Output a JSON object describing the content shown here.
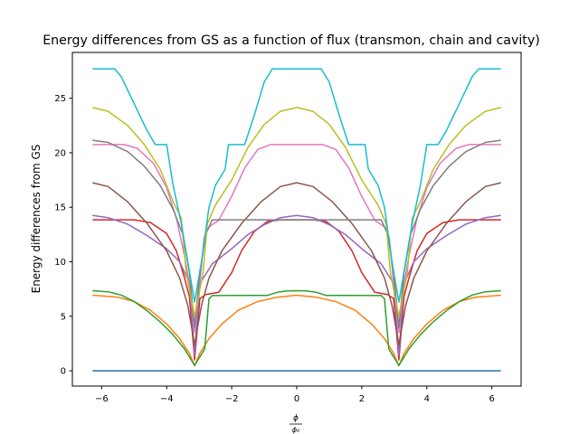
{
  "chart_data": {
    "type": "line",
    "title": "Energy differences from GS as a function of flux (transmon, chain and cavity)",
    "xlabel_num": "ϕ",
    "xlabel_den": "ϕ₀",
    "ylabel": "Energy differences from GS",
    "xlim": [
      -6.9,
      6.9
    ],
    "ylim": [
      -1.4,
      29.2
    ],
    "xticks": [
      -6,
      -4,
      -2,
      0,
      2,
      4,
      6
    ],
    "yticks": [
      0,
      5,
      10,
      15,
      20,
      25
    ],
    "grid": false,
    "legend": "none",
    "series": [
      {
        "color": "#1f77b4",
        "points": [
          [
            -6.28,
            0.0
          ],
          [
            6.28,
            0.0
          ]
        ]
      },
      {
        "color": "#ff7f0e",
        "points": [
          [
            -6.28,
            6.93
          ],
          [
            -5.5,
            6.75
          ],
          [
            -5.0,
            6.35
          ],
          [
            -4.5,
            5.55
          ],
          [
            -4.0,
            4.3
          ],
          [
            -3.6,
            2.95
          ],
          [
            -3.3,
            1.6
          ],
          [
            -3.14,
            0.45
          ],
          [
            -2.98,
            1.6
          ],
          [
            -2.7,
            2.95
          ],
          [
            -2.3,
            4.3
          ],
          [
            -1.8,
            5.55
          ],
          [
            -1.2,
            6.35
          ],
          [
            -0.6,
            6.75
          ],
          [
            0.0,
            6.93
          ],
          [
            0.6,
            6.75
          ],
          [
            1.2,
            6.35
          ],
          [
            1.8,
            5.55
          ],
          [
            2.3,
            4.3
          ],
          [
            2.7,
            2.95
          ],
          [
            2.98,
            1.6
          ],
          [
            3.14,
            0.45
          ],
          [
            3.3,
            1.6
          ],
          [
            3.6,
            2.95
          ],
          [
            4.0,
            4.3
          ],
          [
            4.5,
            5.55
          ],
          [
            5.0,
            6.35
          ],
          [
            5.5,
            6.75
          ],
          [
            6.28,
            6.93
          ]
        ]
      },
      {
        "color": "#2ca02c",
        "points": [
          [
            -6.28,
            7.35
          ],
          [
            -5.8,
            7.25
          ],
          [
            -5.4,
            6.95
          ],
          [
            -5.0,
            6.35
          ],
          [
            -4.6,
            5.5
          ],
          [
            -4.2,
            4.5
          ],
          [
            -3.8,
            3.3
          ],
          [
            -3.45,
            2.0
          ],
          [
            -3.14,
            0.5
          ],
          [
            -2.83,
            2.0
          ],
          [
            -2.7,
            6.6
          ],
          [
            -2.6,
            6.9
          ],
          [
            -2.0,
            6.92
          ],
          [
            -1.0,
            6.92
          ],
          [
            -0.9,
            6.92
          ],
          [
            -0.6,
            7.2
          ],
          [
            -0.3,
            7.32
          ],
          [
            0.0,
            7.35
          ],
          [
            0.3,
            7.32
          ],
          [
            0.6,
            7.2
          ],
          [
            0.9,
            6.92
          ],
          [
            2.0,
            6.92
          ],
          [
            2.6,
            6.9
          ],
          [
            2.7,
            6.6
          ],
          [
            2.83,
            2.0
          ],
          [
            3.14,
            0.5
          ],
          [
            3.45,
            2.0
          ],
          [
            3.8,
            3.3
          ],
          [
            4.2,
            4.5
          ],
          [
            4.6,
            5.5
          ],
          [
            5.0,
            6.35
          ],
          [
            5.4,
            6.95
          ],
          [
            5.8,
            7.25
          ],
          [
            6.28,
            7.35
          ]
        ]
      },
      {
        "color": "#d62728",
        "points": [
          [
            -6.28,
            13.85
          ],
          [
            -5.0,
            13.85
          ],
          [
            -4.5,
            13.6
          ],
          [
            -4.0,
            12.6
          ],
          [
            -3.7,
            11.0
          ],
          [
            -3.45,
            8.5
          ],
          [
            -3.3,
            6.8
          ],
          [
            -3.14,
            1.0
          ],
          [
            -2.98,
            6.6
          ],
          [
            -2.8,
            7.0
          ],
          [
            -2.4,
            7.2
          ],
          [
            -2.0,
            9.0
          ],
          [
            -1.7,
            11.0
          ],
          [
            -1.3,
            12.8
          ],
          [
            -0.9,
            13.7
          ],
          [
            -0.5,
            13.85
          ],
          [
            0.0,
            13.85
          ],
          [
            0.5,
            13.85
          ],
          [
            0.9,
            13.7
          ],
          [
            1.3,
            12.8
          ],
          [
            1.7,
            11.0
          ],
          [
            2.0,
            9.0
          ],
          [
            2.4,
            7.2
          ],
          [
            2.8,
            7.0
          ],
          [
            2.98,
            6.6
          ],
          [
            3.14,
            1.0
          ],
          [
            3.3,
            6.8
          ],
          [
            3.45,
            8.5
          ],
          [
            3.7,
            11.0
          ],
          [
            4.0,
            12.6
          ],
          [
            4.5,
            13.6
          ],
          [
            5.0,
            13.85
          ],
          [
            6.28,
            13.85
          ]
        ]
      },
      {
        "color": "#9467bd",
        "points": [
          [
            -6.28,
            14.25
          ],
          [
            -5.8,
            14.05
          ],
          [
            -5.2,
            13.45
          ],
          [
            -4.6,
            12.4
          ],
          [
            -4.0,
            11.2
          ],
          [
            -3.6,
            10.0
          ],
          [
            -3.3,
            8.0
          ],
          [
            -3.14,
            1.4
          ],
          [
            -2.98,
            8.0
          ],
          [
            -2.6,
            9.8
          ],
          [
            -2.0,
            11.2
          ],
          [
            -1.5,
            12.5
          ],
          [
            -1.0,
            13.4
          ],
          [
            -0.5,
            14.05
          ],
          [
            0.0,
            14.25
          ],
          [
            0.5,
            14.05
          ],
          [
            1.0,
            13.4
          ],
          [
            1.5,
            12.5
          ],
          [
            2.0,
            11.2
          ],
          [
            2.6,
            9.8
          ],
          [
            2.98,
            8.0
          ],
          [
            3.14,
            1.4
          ],
          [
            3.3,
            8.0
          ],
          [
            3.6,
            10.0
          ],
          [
            4.0,
            11.2
          ],
          [
            4.6,
            12.4
          ],
          [
            5.2,
            13.45
          ],
          [
            5.8,
            14.05
          ],
          [
            6.28,
            14.25
          ]
        ]
      },
      {
        "color": "#8c564b",
        "points": [
          [
            -6.28,
            17.25
          ],
          [
            -5.8,
            16.9
          ],
          [
            -5.2,
            15.5
          ],
          [
            -4.6,
            13.5
          ],
          [
            -4.0,
            11.0
          ],
          [
            -3.6,
            8.5
          ],
          [
            -3.35,
            6.0
          ],
          [
            -3.14,
            2.4
          ],
          [
            -2.93,
            6.0
          ],
          [
            -2.7,
            8.5
          ],
          [
            -2.3,
            11.0
          ],
          [
            -1.7,
            13.5
          ],
          [
            -1.1,
            15.5
          ],
          [
            -0.5,
            16.9
          ],
          [
            0.0,
            17.25
          ],
          [
            0.5,
            16.9
          ],
          [
            1.1,
            15.5
          ],
          [
            1.7,
            13.5
          ],
          [
            2.3,
            11.0
          ],
          [
            2.7,
            8.5
          ],
          [
            2.93,
            6.0
          ],
          [
            3.14,
            2.4
          ],
          [
            3.35,
            6.0
          ],
          [
            3.6,
            8.5
          ],
          [
            4.0,
            11.0
          ],
          [
            4.6,
            13.5
          ],
          [
            5.2,
            15.5
          ],
          [
            5.8,
            16.9
          ],
          [
            6.28,
            17.25
          ]
        ]
      },
      {
        "color": "#e377c2",
        "points": [
          [
            -6.28,
            20.75
          ],
          [
            -5.3,
            20.75
          ],
          [
            -4.9,
            20.4
          ],
          [
            -4.4,
            19.0
          ],
          [
            -4.0,
            16.8
          ],
          [
            -3.7,
            14.0
          ],
          [
            -3.45,
            10.5
          ],
          [
            -3.3,
            8.0
          ],
          [
            -3.14,
            3.5
          ],
          [
            -2.98,
            8.0
          ],
          [
            -2.85,
            12.2
          ],
          [
            -2.7,
            13.2
          ],
          [
            -2.4,
            13.8
          ],
          [
            -2.0,
            16.0
          ],
          [
            -1.6,
            18.6
          ],
          [
            -1.2,
            20.3
          ],
          [
            -0.8,
            20.75
          ],
          [
            0.8,
            20.75
          ],
          [
            1.2,
            20.3
          ],
          [
            1.6,
            18.6
          ],
          [
            2.0,
            16.0
          ],
          [
            2.4,
            13.8
          ],
          [
            2.7,
            13.2
          ],
          [
            2.85,
            12.2
          ],
          [
            2.98,
            8.0
          ],
          [
            3.14,
            3.5
          ],
          [
            3.3,
            8.0
          ],
          [
            3.45,
            10.5
          ],
          [
            3.7,
            14.0
          ],
          [
            4.0,
            16.8
          ],
          [
            4.4,
            19.0
          ],
          [
            4.9,
            20.4
          ],
          [
            5.3,
            20.75
          ],
          [
            6.28,
            20.75
          ]
        ]
      },
      {
        "color": "#7f7f7f",
        "points": [
          [
            -6.28,
            21.15
          ],
          [
            -5.8,
            20.95
          ],
          [
            -5.2,
            20.1
          ],
          [
            -4.7,
            18.8
          ],
          [
            -4.2,
            17.0
          ],
          [
            -3.8,
            14.8
          ],
          [
            -3.5,
            12.5
          ],
          [
            -3.3,
            9.0
          ],
          [
            -3.14,
            4.0
          ],
          [
            -2.98,
            9.0
          ],
          [
            -2.8,
            12.5
          ],
          [
            -2.6,
            13.85
          ],
          [
            -2.2,
            13.85
          ],
          [
            -1.0,
            13.85
          ],
          [
            1.0,
            13.85
          ],
          [
            2.2,
            13.85
          ],
          [
            2.6,
            13.85
          ],
          [
            2.8,
            12.5
          ],
          [
            2.98,
            9.0
          ],
          [
            3.14,
            4.0
          ],
          [
            3.3,
            9.0
          ],
          [
            3.5,
            12.5
          ],
          [
            3.8,
            14.8
          ],
          [
            4.2,
            17.0
          ],
          [
            4.7,
            18.8
          ],
          [
            5.2,
            20.1
          ],
          [
            5.8,
            20.95
          ],
          [
            6.28,
            21.15
          ]
        ]
      },
      {
        "color": "#bcbd22",
        "points": [
          [
            -6.28,
            24.15
          ],
          [
            -5.8,
            23.8
          ],
          [
            -5.2,
            22.5
          ],
          [
            -4.7,
            20.8
          ],
          [
            -4.2,
            18.5
          ],
          [
            -3.8,
            15.5
          ],
          [
            -3.55,
            14.0
          ],
          [
            -3.4,
            9.0
          ],
          [
            -3.14,
            5.0
          ],
          [
            -2.88,
            9.0
          ],
          [
            -2.75,
            13.5
          ],
          [
            -2.5,
            15.2
          ],
          [
            -2.0,
            17.5
          ],
          [
            -1.5,
            20.5
          ],
          [
            -1.0,
            22.6
          ],
          [
            -0.5,
            23.8
          ],
          [
            0.0,
            24.15
          ],
          [
            0.5,
            23.8
          ],
          [
            1.0,
            22.6
          ],
          [
            1.5,
            20.5
          ],
          [
            2.0,
            17.5
          ],
          [
            2.5,
            15.2
          ],
          [
            2.75,
            13.5
          ],
          [
            2.88,
            9.0
          ],
          [
            3.14,
            5.0
          ],
          [
            3.4,
            9.0
          ],
          [
            3.55,
            14.0
          ],
          [
            3.8,
            15.5
          ],
          [
            4.2,
            18.5
          ],
          [
            4.7,
            20.8
          ],
          [
            5.2,
            22.5
          ],
          [
            5.8,
            23.8
          ],
          [
            6.28,
            24.15
          ]
        ]
      },
      {
        "color": "#17becf",
        "points": [
          [
            -6.28,
            27.7
          ],
          [
            -5.6,
            27.7
          ],
          [
            -5.4,
            27.0
          ],
          [
            -5.0,
            24.5
          ],
          [
            -4.6,
            22.0
          ],
          [
            -4.35,
            20.75
          ],
          [
            -4.0,
            20.75
          ],
          [
            -3.8,
            17.0
          ],
          [
            -3.55,
            13.5
          ],
          [
            -3.35,
            10.0
          ],
          [
            -3.14,
            6.3
          ],
          [
            -2.93,
            10.0
          ],
          [
            -2.7,
            15.0
          ],
          [
            -2.5,
            17.0
          ],
          [
            -2.2,
            18.5
          ],
          [
            -2.1,
            20.75
          ],
          [
            -1.6,
            20.75
          ],
          [
            -1.3,
            23.5
          ],
          [
            -1.0,
            26.5
          ],
          [
            -0.75,
            27.7
          ],
          [
            0.75,
            27.7
          ],
          [
            1.0,
            26.5
          ],
          [
            1.3,
            23.5
          ],
          [
            1.6,
            20.75
          ],
          [
            2.1,
            20.75
          ],
          [
            2.2,
            18.5
          ],
          [
            2.5,
            17.0
          ],
          [
            2.7,
            15.0
          ],
          [
            2.93,
            10.0
          ],
          [
            3.14,
            6.3
          ],
          [
            3.35,
            10.0
          ],
          [
            3.55,
            13.5
          ],
          [
            3.8,
            17.0
          ],
          [
            4.0,
            20.75
          ],
          [
            4.35,
            20.75
          ],
          [
            4.6,
            22.0
          ],
          [
            5.0,
            24.5
          ],
          [
            5.4,
            27.0
          ],
          [
            5.6,
            27.7
          ],
          [
            6.28,
            27.7
          ]
        ]
      }
    ]
  }
}
